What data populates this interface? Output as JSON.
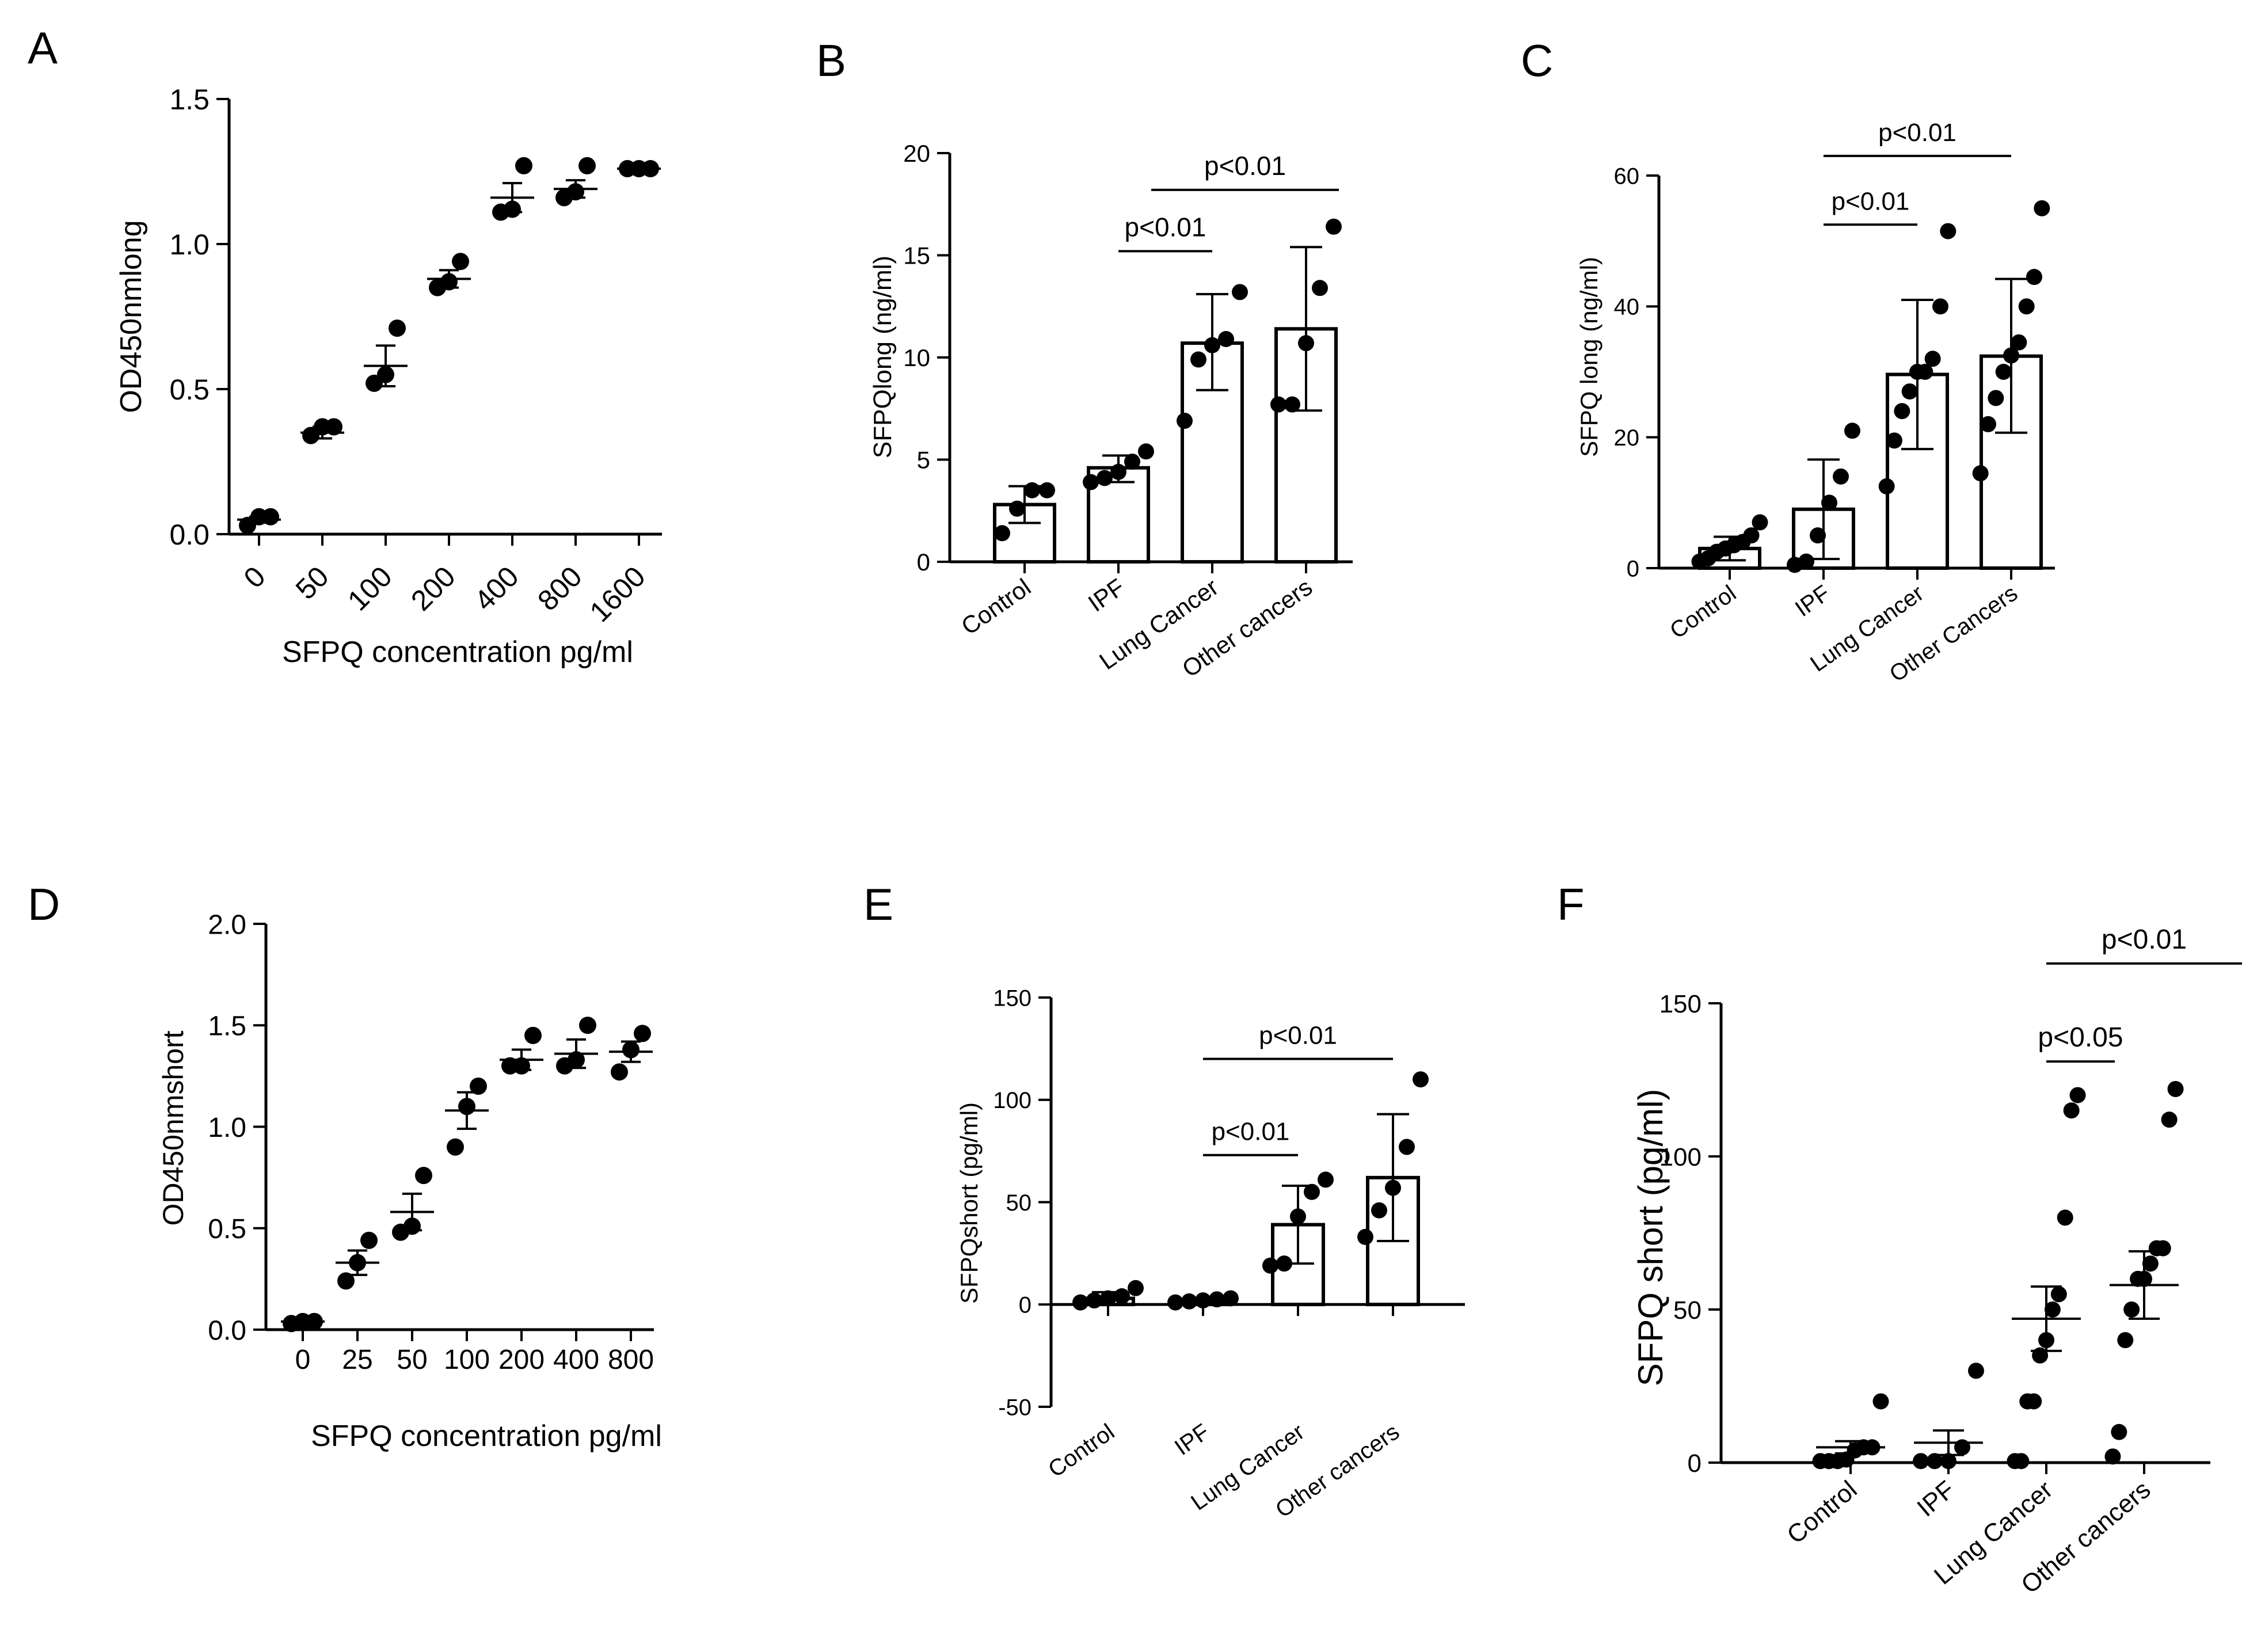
{
  "chart_data": [
    {
      "panel": "A",
      "type": "scatter",
      "xlabel": "SFPQ concentration pg/ml",
      "ylabel": "OD450nmlong",
      "ylim": [
        0,
        1.5
      ],
      "yticks": [
        "0.0",
        "0.5",
        "1.0",
        "1.5"
      ],
      "categories": [
        "0",
        "50",
        "100",
        "200",
        "400",
        "800",
        "1600"
      ],
      "points": [
        [
          0.03,
          0.06,
          0.06
        ],
        [
          0.34,
          0.37,
          0.37
        ],
        [
          0.52,
          0.55,
          0.71
        ],
        [
          0.85,
          0.87,
          0.94
        ],
        [
          1.11,
          1.12,
          1.27
        ],
        [
          1.16,
          1.18,
          1.27
        ],
        [
          1.26,
          1.26,
          1.26
        ]
      ],
      "mean": [
        0.05,
        0.35,
        0.58,
        0.88,
        1.16,
        1.19,
        1.26
      ],
      "sem": [
        0.01,
        0.02,
        0.07,
        0.03,
        0.05,
        0.03,
        0.005
      ]
    },
    {
      "panel": "B",
      "type": "bar",
      "xlabel": "",
      "ylabel": "SFPQlong (ng/ml)",
      "ylim": [
        0,
        20
      ],
      "yticks": [
        "0",
        "5",
        "10",
        "15",
        "20"
      ],
      "categories": [
        "Control",
        "IPF",
        "Lung Cancer",
        "Other cancers"
      ],
      "values": [
        2.8,
        4.6,
        10.7,
        11.4
      ],
      "err_hi": [
        3.7,
        5.2,
        13.1,
        15.4
      ],
      "err_lo": [
        1.9,
        3.9,
        8.4,
        7.4
      ],
      "points": [
        [
          1.4,
          2.6,
          3.5,
          3.5
        ],
        [
          3.9,
          4.1,
          4.4,
          4.9,
          5.4
        ],
        [
          6.9,
          9.9,
          10.6,
          10.9,
          13.2
        ],
        [
          7.7,
          7.7,
          10.7,
          13.4,
          16.4
        ]
      ],
      "annotations": [
        {
          "text": "p<0.01",
          "from": 1,
          "to": 2,
          "y": 15.2
        },
        {
          "text": "p<0.01",
          "from": 1.35,
          "to": 3.35,
          "y": 18.2
        }
      ]
    },
    {
      "panel": "C",
      "type": "bar",
      "xlabel": "",
      "ylabel": "SFPQ long (ng/ml)",
      "ylim": [
        0,
        60
      ],
      "yticks": [
        "0",
        "20",
        "40",
        "60"
      ],
      "categories": [
        "Control",
        "IPF",
        "Lung Cancer",
        "Other Cancers"
      ],
      "values": [
        3.0,
        9.0,
        29.6,
        32.4
      ],
      "err_hi": [
        4.8,
        16.6,
        41.0,
        44.2
      ],
      "err_lo": [
        1.2,
        1.4,
        18.2,
        20.7
      ],
      "points": [
        [
          1.0,
          1.5,
          2.5,
          3.0,
          3.5,
          4.0,
          5.0,
          7.0
        ],
        [
          0.5,
          1.0,
          5.0,
          10.0,
          14.0,
          21.0
        ],
        [
          12.5,
          19.5,
          24.0,
          27.0,
          30.0,
          30.0,
          32.0,
          40.0,
          51.5
        ],
        [
          14.5,
          22.0,
          26.0,
          30.0,
          32.5,
          34.5,
          40.0,
          44.5,
          55.0
        ]
      ],
      "annotations": [
        {
          "text": "p<0.01",
          "from": 1,
          "to": 2,
          "y": 52.5
        },
        {
          "text": "p<0.01",
          "from": 1,
          "to": 3,
          "y": 63.0
        }
      ]
    },
    {
      "panel": "D",
      "type": "scatter",
      "xlabel": "SFPQ concentration pg/ml",
      "ylabel": "OD450nmshort",
      "ylim": [
        0,
        2.0
      ],
      "yticks": [
        "0.0",
        "0.5",
        "1.0",
        "1.5",
        "2.0"
      ],
      "categories": [
        "0",
        "25",
        "50",
        "100",
        "200",
        "400",
        "800"
      ],
      "points": [
        [
          0.03,
          0.04,
          0.04
        ],
        [
          0.24,
          0.33,
          0.44
        ],
        [
          0.48,
          0.51,
          0.76
        ],
        [
          0.9,
          1.1,
          1.2
        ],
        [
          1.3,
          1.3,
          1.45
        ],
        [
          1.3,
          1.33,
          1.5
        ],
        [
          1.27,
          1.38,
          1.46
        ]
      ],
      "mean": [
        0.04,
        0.33,
        0.58,
        1.08,
        1.33,
        1.36,
        1.37
      ],
      "sem": [
        0.005,
        0.06,
        0.09,
        0.09,
        0.05,
        0.07,
        0.05
      ]
    },
    {
      "panel": "E",
      "type": "bar",
      "xlabel": "",
      "ylabel": "SFPQshort (pg/ml)",
      "ylim": [
        -50,
        150
      ],
      "yticks": [
        "-50",
        "0",
        "50",
        "100",
        "150"
      ],
      "categories": [
        "Control",
        "IPF",
        "Lung Cancer",
        "Other cancers"
      ],
      "values": [
        3.0,
        1.5,
        39.0,
        62.0
      ],
      "err_hi": [
        6.0,
        3.0,
        58.0,
        93.0
      ],
      "err_lo": [
        0,
        0,
        20.0,
        31.0
      ],
      "points": [
        [
          1.0,
          2.0,
          3.0,
          4.0,
          8.0
        ],
        [
          1.0,
          1.5,
          2.0,
          2.5,
          3.0
        ],
        [
          19.0,
          20.0,
          43.0,
          55.0,
          61.0
        ],
        [
          33.0,
          46.0,
          57.0,
          77.0,
          110.0
        ]
      ],
      "annotations": [
        {
          "text": "p<0.01",
          "from": 1,
          "to": 2,
          "y": 73.0
        },
        {
          "text": "p<0.01",
          "from": 1,
          "to": 3,
          "y": 120.0
        }
      ]
    },
    {
      "panel": "F",
      "type": "scatter",
      "xlabel": "",
      "ylabel": "SFPQ short (pg/ml)",
      "ylim": [
        0,
        150
      ],
      "yticks": [
        "0",
        "50",
        "100",
        "150"
      ],
      "categories": [
        "Control",
        "IPF",
        "Lung Cancer",
        "Other cancers"
      ],
      "points": [
        [
          0.5,
          0.5,
          0.5,
          1.0,
          4.0,
          5.0,
          5.0,
          20.0
        ],
        [
          0.5,
          0.5,
          0.5,
          5.0,
          30.0
        ],
        [
          0.5,
          0.5,
          20.0,
          20.0,
          35.0,
          40.0,
          50.0,
          55.0,
          80.0,
          115.0,
          120.0
        ],
        [
          2.0,
          10.0,
          40.0,
          50.0,
          60.0,
          60.0,
          65.0,
          70.0,
          70.0,
          112.0,
          122.0
        ]
      ],
      "mean": [
        5.0,
        6.5,
        47.0,
        58.0
      ],
      "sem": [
        2.0,
        4.0,
        10.5,
        11.0
      ],
      "annotations": [
        {
          "text": "p<0.05",
          "from": 2,
          "to": 2.7,
          "y": 131.0
        },
        {
          "text": "p<0.01",
          "from": 2,
          "to": 4,
          "y": 163.0
        }
      ]
    }
  ]
}
